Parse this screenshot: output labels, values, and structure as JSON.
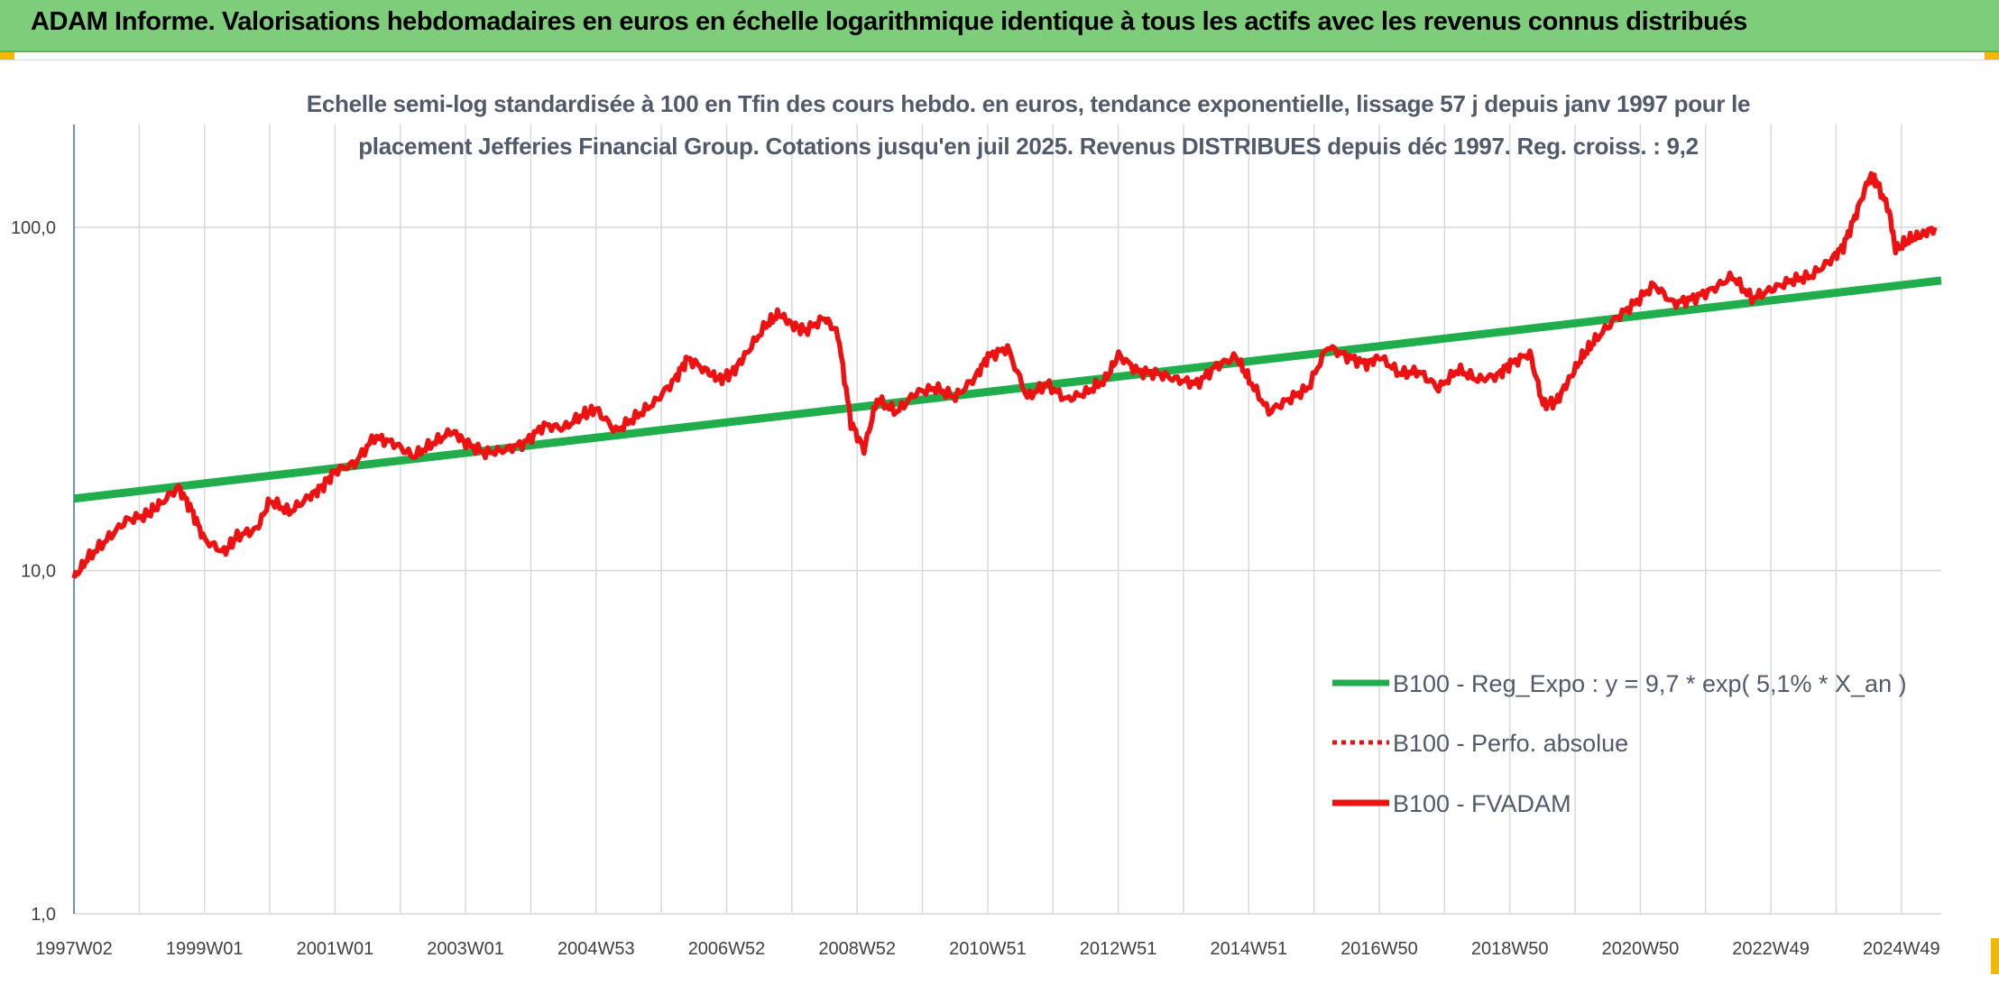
{
  "banner": {
    "title": "ADAM Informe. Valorisations hebdomadaires en euros en échelle logarithmique identique à tous les actifs avec les revenus connus distribués"
  },
  "colors": {
    "banner_bg": "#7dcd7a",
    "trend": "#1fae4b",
    "series": "#ee1111",
    "corner": "#f5b800"
  },
  "chart_data": {
    "type": "line",
    "subtitle_lines": [
      "Echelle semi-log standardisée à 100 en Tfin des cours hebdo. en euros, tendance exponentielle, lissage 57 j depuis janv 1997 pour le",
      "placement Jefferies Financial Group. Cotations jusqu'en juil 2025. Revenus DISTRIBUES depuis déc 1997. Reg. croiss. : 9,2"
    ],
    "y_scale": "log",
    "y_ticks": [
      "1,0",
      "10,0",
      "100,0"
    ],
    "y_tick_values": [
      1,
      10,
      100
    ],
    "ylim": [
      1,
      200
    ],
    "x_ticks": [
      "1997W02",
      "1999W01",
      "2001W01",
      "2003W01",
      "2004W53",
      "2006W52",
      "2008W52",
      "2010W51",
      "2012W51",
      "2014W51",
      "2016W50",
      "2018W50",
      "2020W50",
      "2022W49",
      "2024W49"
    ],
    "xlim": [
      1997.0,
      2025.6
    ],
    "grid": true,
    "legend_position": "bottom-right",
    "legend": [
      {
        "label": "B100 - Reg_Expo : y = 9,7 * exp( 5,1% *  X_an )",
        "style": "solid-green"
      },
      {
        "label": "B100 - Perfo. absolue",
        "style": "dotted-red"
      },
      {
        "label": "B100 - FVADAM",
        "style": "solid-red"
      }
    ],
    "series": [
      {
        "name": "B100 - Reg_Expo : y = 9,7 * exp( 5,1% *  X_an )",
        "kind": "trend",
        "x": [
          1997.0,
          2025.6
        ],
        "y": [
          16.2,
          70.0
        ]
      },
      {
        "name": "B100 - FVADAM",
        "kind": "line",
        "x": [
          1997.0,
          1997.2,
          1997.5,
          1997.8,
          1998.1,
          1998.3,
          1998.6,
          1998.8,
          1999.0,
          1999.3,
          1999.5,
          1999.8,
          2000.0,
          2000.3,
          2000.6,
          2000.8,
          2001.0,
          2001.3,
          2001.6,
          2001.9,
          2002.2,
          2002.5,
          2002.8,
          2003.0,
          2003.3,
          2003.6,
          2003.9,
          2004.2,
          2004.5,
          2004.8,
          2005.0,
          2005.3,
          2005.6,
          2005.9,
          2006.2,
          2006.4,
          2006.7,
          2006.9,
          2007.1,
          2007.3,
          2007.6,
          2007.8,
          2008.0,
          2008.2,
          2008.5,
          2008.7,
          2008.9,
          2009.1,
          2009.3,
          2009.6,
          2009.9,
          2010.2,
          2010.5,
          2010.8,
          2011.0,
          2011.3,
          2011.6,
          2011.9,
          2012.2,
          2012.5,
          2012.8,
          2013.0,
          2013.3,
          2013.6,
          2013.9,
          2014.2,
          2014.5,
          2014.8,
          2015.0,
          2015.3,
          2015.6,
          2015.9,
          2016.2,
          2016.5,
          2016.8,
          2017.0,
          2017.3,
          2017.6,
          2017.9,
          2018.2,
          2018.5,
          2018.8,
          2019.0,
          2019.3,
          2019.5,
          2019.7,
          2019.9,
          2020.1,
          2020.3,
          2020.6,
          2020.9,
          2021.2,
          2021.5,
          2021.8,
          2022.1,
          2022.4,
          2022.7,
          2023.0,
          2023.3,
          2023.6,
          2023.9,
          2024.1,
          2024.3,
          2024.5,
          2024.6,
          2024.8,
          2024.9,
          2025.1,
          2025.3,
          2025.5
        ],
        "y": [
          9.5,
          10.8,
          12.3,
          14.0,
          14.5,
          15.5,
          17.5,
          15.0,
          12.3,
          11.3,
          12.6,
          13.2,
          16.0,
          14.8,
          16.4,
          17.5,
          19.5,
          20.5,
          24.5,
          23.5,
          21.5,
          23.5,
          25.5,
          23.5,
          22.0,
          22.5,
          23.5,
          26.5,
          26.0,
          28.5,
          29.5,
          25.5,
          28.0,
          31.0,
          36.0,
          41.5,
          38.0,
          36.0,
          38.0,
          43.0,
          52.0,
          56.0,
          52.0,
          50.0,
          54.5,
          49.0,
          27.0,
          22.5,
          31.5,
          29.0,
          33.0,
          34.0,
          32.0,
          36.5,
          42.0,
          44.5,
          32.0,
          35.0,
          31.5,
          33.0,
          36.0,
          42.5,
          38.0,
          37.5,
          36.0,
          35.0,
          39.5,
          42.0,
          36.0,
          29.0,
          31.5,
          34.0,
          45.0,
          42.0,
          40.0,
          42.0,
          37.5,
          38.0,
          34.0,
          38.5,
          36.0,
          37.0,
          40.0,
          43.0,
          30.5,
          31.0,
          36.0,
          42.0,
          47.0,
          54.0,
          60.0,
          68.0,
          60.0,
          62.0,
          66.0,
          72.0,
          62.0,
          66.0,
          70.0,
          72.0,
          80.0,
          88.0,
          110.0,
          140.0,
          136.0,
          112.0,
          86.0,
          92.0,
          95.0,
          100.0
        ]
      }
    ]
  }
}
